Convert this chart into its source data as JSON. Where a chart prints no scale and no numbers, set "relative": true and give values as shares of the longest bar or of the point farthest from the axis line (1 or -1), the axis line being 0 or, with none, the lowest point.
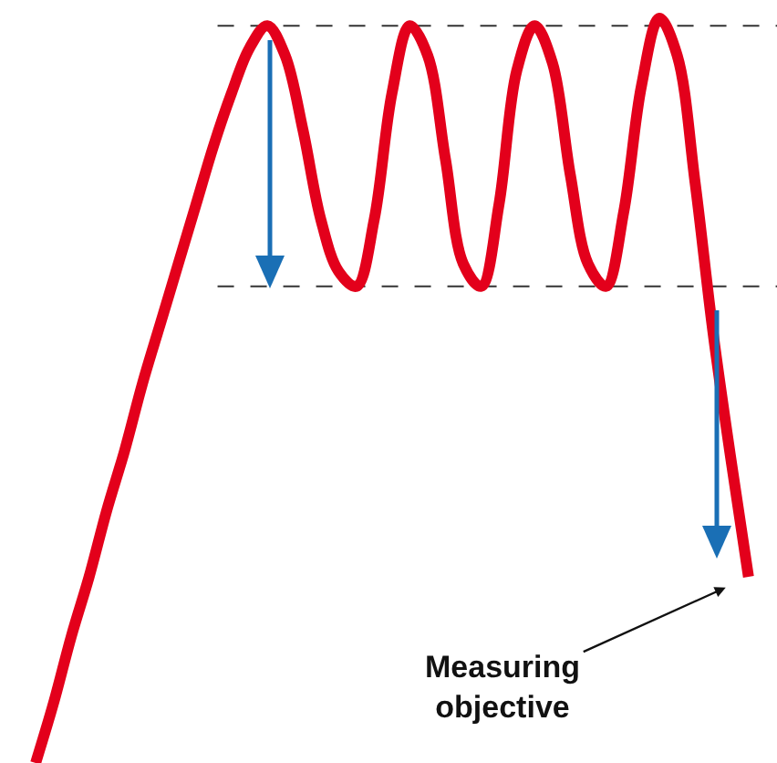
{
  "chart_data": {
    "type": "line",
    "relative": true,
    "categories": [
      null,
      null,
      null,
      null,
      null,
      null,
      null,
      null,
      null,
      null,
      null,
      null,
      null,
      null,
      null,
      null,
      null,
      null,
      null,
      null,
      null,
      null,
      null,
      null,
      null,
      null,
      null,
      null,
      null,
      null,
      null,
      null,
      null,
      null,
      null,
      null,
      null,
      null,
      null,
      null,
      null
    ],
    "series": [
      {
        "color": "#e3001b",
        "values": [
          0,
          0.08,
          0.17,
          0.25,
          0.34,
          0.42,
          0.51,
          0.59,
          0.67,
          0.75,
          0.83,
          0.9,
          0.96,
          0.99,
          0.95,
          0.85,
          0.73,
          0.66,
          0.64,
          0.73,
          0.9,
          0.99,
          0.95,
          0.81,
          0.67,
          0.64,
          0.75,
          0.93,
          0.99,
          0.94,
          0.79,
          0.67,
          0.64,
          0.74,
          0.91,
          1,
          0.95,
          0.78,
          0.58,
          0.41,
          0.25
        ]
      }
    ],
    "ref_lines": [
      {
        "axis": "y",
        "value": 0.99,
        "color": "#333333",
        "line_style": "dashed"
      },
      {
        "axis": "y",
        "value": 0.64,
        "color": "#333333",
        "line_style": "dashed"
      }
    ],
    "annotations": [
      "Measuring\nobjective"
    ],
    "marker": "none",
    "line_style": "solid"
  }
}
